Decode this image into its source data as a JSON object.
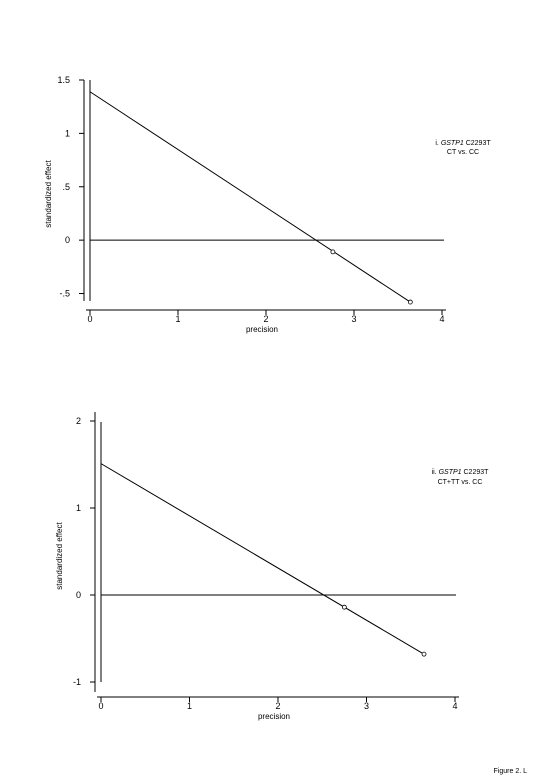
{
  "chart_data": [
    {
      "type": "scatter",
      "xlabel": "precision",
      "ylabel": "standardized effect",
      "annotation": {
        "prefix": "i. ",
        "gene": "GSTP1",
        "suffix": " C2293T",
        "line2": "CT vs. CC"
      },
      "xlim": [
        0,
        4
      ],
      "ylim": [
        -0.57,
        1.5
      ],
      "xticks": [
        0,
        1,
        2,
        3,
        4
      ],
      "xticklabels": [
        "0",
        "1",
        "2",
        "3",
        "4"
      ],
      "yticks": [
        1.5,
        1,
        0.5,
        0,
        -0.5
      ],
      "yticklabels": [
        "1.5",
        "1",
        ".5",
        "0",
        "-.5"
      ],
      "points": [
        {
          "x": 2.76,
          "y": -0.11
        },
        {
          "x": 3.64,
          "y": -0.58
        }
      ],
      "regression_line": {
        "x": [
          0,
          3.64
        ],
        "y": [
          1.39,
          -0.58
        ]
      },
      "reference_line_y": 0
    },
    {
      "type": "scatter",
      "xlabel": "precision",
      "ylabel": "standardized effect",
      "annotation": {
        "prefix": "ii. ",
        "gene": "GSTP1",
        "suffix": " C2293T",
        "line2": "CT+TT vs. CC"
      },
      "xlim": [
        0,
        4
      ],
      "ylim": [
        -1,
        2
      ],
      "xticks": [
        0,
        1,
        2,
        3,
        4
      ],
      "xticklabels": [
        "0",
        "1",
        "2",
        "3",
        "4"
      ],
      "yticks": [
        2,
        1,
        0,
        -1
      ],
      "yticklabels": [
        "2",
        "1",
        "0",
        "-1"
      ],
      "points": [
        {
          "x": 2.75,
          "y": -0.14
        },
        {
          "x": 3.65,
          "y": -0.68
        }
      ],
      "regression_line": {
        "x": [
          0,
          3.65
        ],
        "y": [
          1.51,
          -0.68
        ]
      },
      "reference_line_y": 0
    }
  ],
  "figure_caption": "Figure 2. L"
}
